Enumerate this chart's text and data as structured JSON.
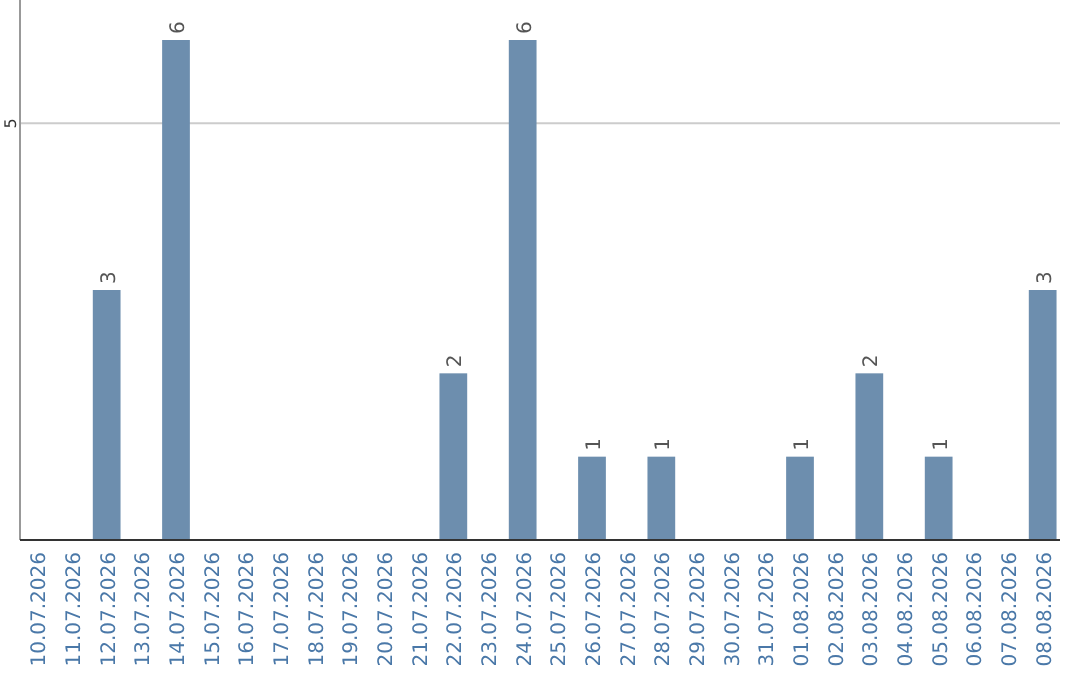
{
  "chart_data": {
    "type": "bar",
    "categories": [
      "10.07.2026",
      "11.07.2026",
      "12.07.2026",
      "13.07.2026",
      "14.07.2026",
      "15.07.2026",
      "16.07.2026",
      "17.07.2026",
      "18.07.2026",
      "19.07.2026",
      "20.07.2026",
      "21.07.2026",
      "22.07.2026",
      "23.07.2026",
      "24.07.2026",
      "25.07.2026",
      "26.07.2026",
      "27.07.2026",
      "28.07.2026",
      "29.07.2026",
      "30.07.2026",
      "31.07.2026",
      "01.08.2026",
      "02.08.2026",
      "03.08.2026",
      "04.08.2026",
      "05.08.2026",
      "06.08.2026",
      "07.08.2026",
      "08.08.2026"
    ],
    "values": [
      0,
      0,
      3,
      0,
      6,
      0,
      0,
      0,
      0,
      0,
      0,
      0,
      2,
      0,
      6,
      0,
      1,
      0,
      1,
      0,
      0,
      0,
      1,
      0,
      2,
      0,
      1,
      0,
      0,
      3
    ],
    "value_labels": [
      null,
      null,
      "3",
      null,
      "6",
      null,
      null,
      null,
      null,
      null,
      null,
      null,
      "2",
      null,
      "6",
      null,
      "1",
      null,
      "1",
      null,
      null,
      null,
      "1",
      null,
      "2",
      null,
      "1",
      null,
      null,
      "3"
    ],
    "color": "#6d8eae",
    "ylim": [
      0,
      6
    ],
    "yticks": [
      5
    ],
    "grid": "y"
  }
}
